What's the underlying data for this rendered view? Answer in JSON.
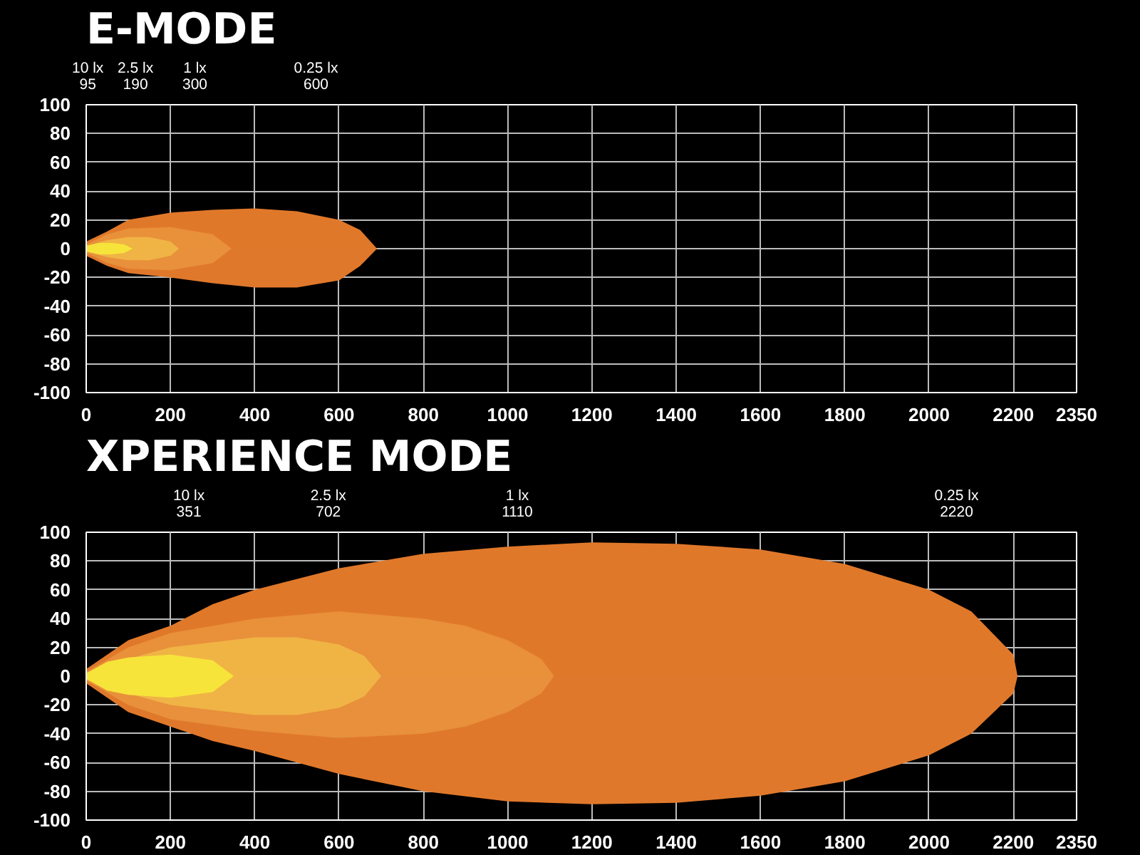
{
  "chart_data": [
    {
      "type": "area",
      "title": "E-MODE",
      "xlim": [
        0,
        2350
      ],
      "ylim": [
        -100,
        100
      ],
      "xticks": [
        0,
        200,
        400,
        600,
        800,
        1000,
        1200,
        1400,
        1600,
        1800,
        2000,
        2200,
        2350
      ],
      "yticks": [
        -100,
        -80,
        -60,
        -40,
        -20,
        0,
        20,
        40,
        60,
        80,
        100
      ],
      "grid": true,
      "annotations": [
        "10 lx\n95",
        "2.5 lx\n190",
        "1 lx\n300",
        "0.25 lx\n600"
      ],
      "series": [
        {
          "color": "#e0782a",
          "x": [
            0,
            50,
            100,
            200,
            300,
            400,
            500,
            600,
            650,
            690
          ],
          "values": [
            5,
            12,
            20,
            25,
            27,
            28,
            26,
            20,
            13,
            0
          ]
        },
        {
          "color": "#e0782b",
          "x": [
            0,
            50,
            100,
            200,
            300,
            400,
            500,
            600,
            650,
            690
          ],
          "values": [
            -5,
            -12,
            -17,
            -20,
            -24,
            -27,
            -27,
            -22,
            -12,
            0
          ]
        },
        {
          "color": "#e8903a",
          "x": [
            0,
            50,
            100,
            200,
            300,
            345
          ],
          "values": [
            3,
            10,
            14,
            15,
            10,
            0
          ]
        },
        {
          "color": "#e8903b",
          "x": [
            0,
            50,
            100,
            200,
            300,
            345
          ],
          "values": [
            -3,
            -10,
            -14,
            -15,
            -10,
            0
          ]
        },
        {
          "color": "#f0b445",
          "x": [
            0,
            50,
            100,
            150,
            200,
            220
          ],
          "values": [
            2,
            6,
            8,
            8,
            5,
            0
          ]
        },
        {
          "color": "#f0b446",
          "x": [
            0,
            50,
            100,
            150,
            200,
            220
          ],
          "values": [
            -2,
            -6,
            -8,
            -8,
            -5,
            0
          ]
        },
        {
          "color": "#f7e43a",
          "x": [
            0,
            30,
            60,
            90,
            110
          ],
          "values": [
            2,
            4,
            4,
            3,
            0
          ]
        },
        {
          "color": "#f7e43b",
          "x": [
            0,
            30,
            60,
            90,
            110
          ],
          "values": [
            -2,
            -4,
            -4,
            -3,
            0
          ]
        }
      ]
    },
    {
      "type": "area",
      "title": "XPERIENCE MODE",
      "xlim": [
        0,
        2350
      ],
      "ylim": [
        -100,
        100
      ],
      "xticks": [
        0,
        200,
        400,
        600,
        800,
        1000,
        1200,
        1400,
        1600,
        1800,
        2000,
        2200,
        2350
      ],
      "yticks": [
        -100,
        -80,
        -60,
        -40,
        -20,
        0,
        20,
        40,
        60,
        80,
        100
      ],
      "grid": true,
      "annotations": [
        "10 lx\n351",
        "2.5 lx\n702",
        "1 lx\n1110",
        "0.25 lx\n2220"
      ],
      "series": [
        {
          "color": "#e0782a",
          "x": [
            0,
            50,
            100,
            200,
            300,
            400,
            600,
            800,
            1000,
            1200,
            1400,
            1600,
            1800,
            2000,
            2100,
            2200,
            2210
          ],
          "values": [
            5,
            15,
            25,
            35,
            50,
            60,
            75,
            85,
            90,
            93,
            92,
            88,
            78,
            60,
            45,
            15,
            0
          ]
        },
        {
          "color": "#e0782b",
          "x": [
            0,
            50,
            100,
            200,
            300,
            400,
            600,
            800,
            1000,
            1200,
            1400,
            1600,
            1800,
            2000,
            2100,
            2200,
            2210
          ],
          "values": [
            -5,
            -15,
            -25,
            -35,
            -45,
            -52,
            -68,
            -80,
            -87,
            -89,
            -88,
            -83,
            -73,
            -55,
            -40,
            -12,
            0
          ]
        },
        {
          "color": "#e8903a",
          "x": [
            0,
            100,
            200,
            400,
            600,
            800,
            900,
            1000,
            1080,
            1110
          ],
          "values": [
            3,
            20,
            30,
            40,
            45,
            40,
            35,
            25,
            12,
            0
          ]
        },
        {
          "color": "#e8903b",
          "x": [
            0,
            100,
            200,
            400,
            600,
            800,
            900,
            1000,
            1080,
            1110
          ],
          "values": [
            -3,
            -20,
            -30,
            -38,
            -43,
            -40,
            -35,
            -25,
            -12,
            0
          ]
        },
        {
          "color": "#f0b445",
          "x": [
            0,
            100,
            200,
            400,
            500,
            600,
            660,
            700
          ],
          "values": [
            2,
            12,
            20,
            27,
            27,
            22,
            14,
            0
          ]
        },
        {
          "color": "#f0b446",
          "x": [
            0,
            100,
            200,
            400,
            500,
            600,
            660,
            700
          ],
          "values": [
            -2,
            -12,
            -20,
            -27,
            -27,
            -22,
            -14,
            0
          ]
        },
        {
          "color": "#f7e43a",
          "x": [
            0,
            50,
            100,
            200,
            300,
            350
          ],
          "values": [
            2,
            10,
            13,
            15,
            11,
            0
          ]
        },
        {
          "color": "#f7e43b",
          "x": [
            0,
            50,
            100,
            200,
            300,
            350
          ],
          "values": [
            -2,
            -10,
            -13,
            -15,
            -11,
            0
          ]
        }
      ]
    }
  ]
}
